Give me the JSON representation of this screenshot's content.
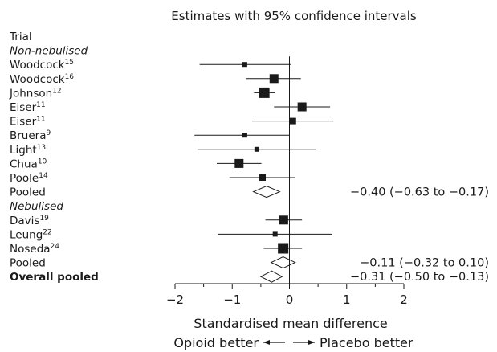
{
  "chart_data": {
    "type": "forest",
    "title": "Estimates with 95% confidence intervals",
    "column_header": "Trial",
    "xlabel": "Standardised mean difference",
    "direction_left": "Opioid better",
    "direction_right": "Placebo better",
    "xlim": [
      -2,
      2
    ],
    "xticks": [
      -2,
      -1,
      0,
      1,
      2
    ],
    "xtick_labels": [
      "−2",
      "−1",
      "0",
      "1",
      "2"
    ],
    "reference_line": 0,
    "rows": [
      {
        "kind": "header",
        "label": "Trial"
      },
      {
        "kind": "group",
        "label": "Non-nebulised"
      },
      {
        "kind": "study",
        "label": "Woodcock",
        "ref": "15",
        "estimate": -0.78,
        "lower": -1.57,
        "upper": 0.02,
        "weight": "small"
      },
      {
        "kind": "study",
        "label": "Woodcock",
        "ref": "16",
        "estimate": -0.27,
        "lower": -0.76,
        "upper": 0.2,
        "weight": "large"
      },
      {
        "kind": "study",
        "label": "Johnson",
        "ref": "12",
        "estimate": -0.44,
        "lower": -0.62,
        "upper": -0.25,
        "weight": "largest"
      },
      {
        "kind": "study",
        "label": "Eiser",
        "ref": "11",
        "estimate": 0.22,
        "lower": -0.27,
        "upper": 0.71,
        "weight": "large"
      },
      {
        "kind": "study",
        "label": "Eiser",
        "ref": "11",
        "estimate": 0.06,
        "lower": -0.65,
        "upper": 0.77,
        "weight": "medium"
      },
      {
        "kind": "study",
        "label": "Bruera",
        "ref": "9",
        "estimate": -0.78,
        "lower": -1.66,
        "upper": 0.0,
        "weight": "small"
      },
      {
        "kind": "study",
        "label": "Light",
        "ref": "13",
        "estimate": -0.57,
        "lower": -1.61,
        "upper": 0.46,
        "weight": "small"
      },
      {
        "kind": "study",
        "label": "Chua",
        "ref": "10",
        "estimate": -0.88,
        "lower": -1.27,
        "upper": -0.49,
        "weight": "large"
      },
      {
        "kind": "study",
        "label": "Poole",
        "ref": "14",
        "estimate": -0.47,
        "lower": -1.05,
        "upper": 0.1,
        "weight": "medium"
      },
      {
        "kind": "pooled",
        "label": "Pooled",
        "estimate": -0.4,
        "lower": -0.63,
        "upper": -0.17,
        "text": "−0.40 (−0.63 to −0.17)"
      },
      {
        "kind": "group",
        "label": "Nebulised"
      },
      {
        "kind": "study",
        "label": "Davis",
        "ref": "19",
        "estimate": -0.1,
        "lower": -0.42,
        "upper": 0.22,
        "weight": "large"
      },
      {
        "kind": "study",
        "label": "Leung",
        "ref": "22",
        "estimate": -0.25,
        "lower": -1.25,
        "upper": 0.75,
        "weight": "small"
      },
      {
        "kind": "study",
        "label": "Noseda",
        "ref": "24",
        "estimate": -0.11,
        "lower": -0.45,
        "upper": 0.22,
        "weight": "largest"
      },
      {
        "kind": "pooled",
        "label": "Pooled",
        "estimate": -0.11,
        "lower": -0.32,
        "upper": 0.1,
        "text": "−0.11 (−0.32 to 0.10)"
      },
      {
        "kind": "overall",
        "label": "Overall pooled",
        "estimate": -0.31,
        "lower": -0.5,
        "upper": -0.13,
        "text": "−0.31 (−0.50 to −0.13)"
      }
    ]
  }
}
